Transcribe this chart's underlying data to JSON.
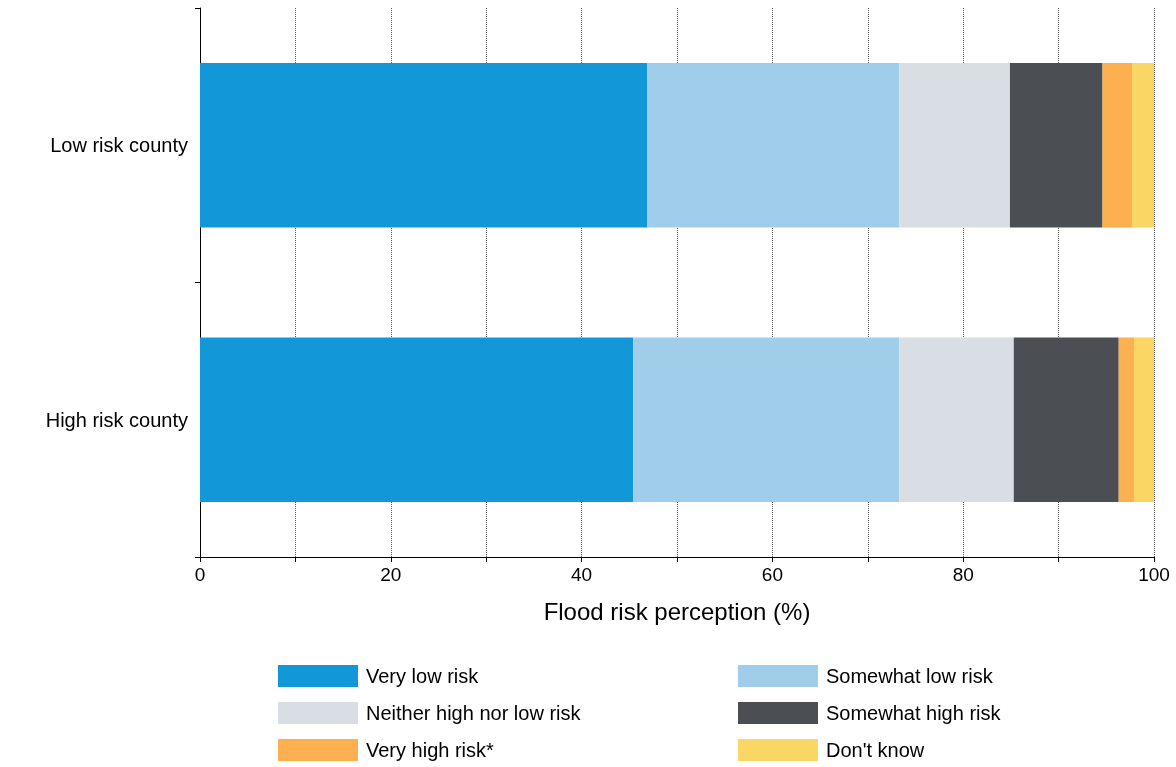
{
  "chart_data": {
    "type": "bar",
    "orientation": "horizontal",
    "stacked": true,
    "xlabel": "Flood risk perception (%)",
    "categories": [
      "Low risk county",
      "High risk county"
    ],
    "series": [
      {
        "name": "Very low risk",
        "color": "#1297d9",
        "values": [
          46.9,
          45.4
        ]
      },
      {
        "name": "Somewhat low risk",
        "color": "#a0cdea",
        "values": [
          26.4,
          27.9
        ]
      },
      {
        "name": "Neither high nor low risk",
        "color": "#d8dee4",
        "values": [
          11.6,
          12.0
        ]
      },
      {
        "name": "Somewhat high risk",
        "color": "#4b4e53",
        "values": [
          9.7,
          11.0
        ]
      },
      {
        "name": "Very high risk*",
        "color": "#fdb04f",
        "values": [
          3.1,
          1.6
        ]
      },
      {
        "name": "Don't know",
        "color": "#fad764",
        "values": [
          2.3,
          2.1
        ]
      }
    ],
    "xlim": [
      0,
      100
    ],
    "xticks": [
      0,
      {
        "value": 10,
        "label": null
      },
      20,
      {
        "value": 30,
        "label": null
      },
      40,
      {
        "value": 50,
        "label": null
      },
      60,
      {
        "value": 70,
        "label": null
      },
      80,
      {
        "value": 90,
        "label": null
      },
      100
    ],
    "grid": "x",
    "legend": "bottom"
  }
}
